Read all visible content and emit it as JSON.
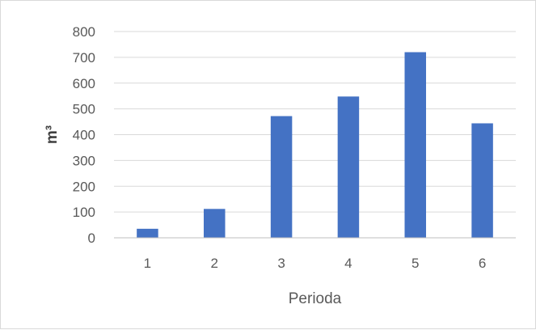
{
  "chart_data": {
    "type": "bar",
    "title": "",
    "categories": [
      "1",
      "2",
      "3",
      "4",
      "5",
      "6"
    ],
    "values": [
      35,
      112,
      472,
      548,
      720,
      444
    ],
    "xlabel": "Perioda",
    "ylabel": "m³",
    "ylim": [
      0,
      800
    ],
    "yticks": [
      0,
      100,
      200,
      300,
      400,
      500,
      600,
      700,
      800
    ],
    "grid": true,
    "legend": "none",
    "bar_color": "#4472C4"
  }
}
